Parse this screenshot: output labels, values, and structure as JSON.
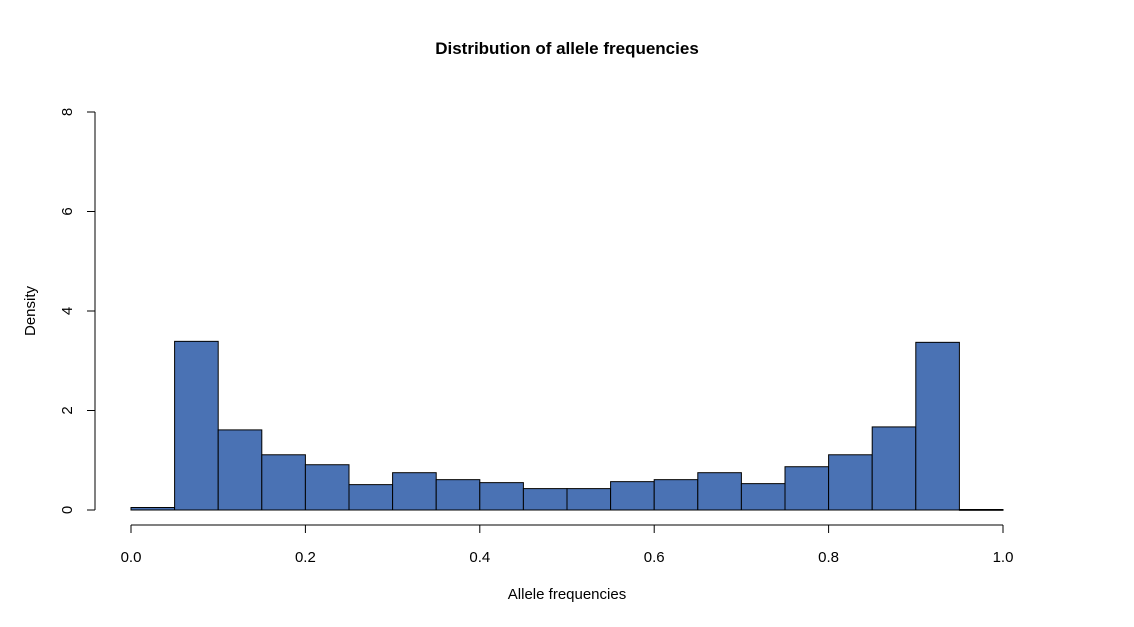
{
  "chart_data": {
    "type": "bar",
    "title": "Distribution of allele frequencies",
    "xlabel": "Allele frequencies",
    "ylabel": "Density",
    "xlim": [
      0,
      1
    ],
    "ylim": [
      0,
      8
    ],
    "x_ticks": [
      "0.0",
      "0.2",
      "0.4",
      "0.6",
      "0.8",
      "1.0"
    ],
    "y_ticks": [
      "0",
      "2",
      "4",
      "6",
      "8"
    ],
    "bar_color": "#4a72b4",
    "bin_edges": [
      0.0,
      0.05,
      0.1,
      0.15,
      0.2,
      0.25,
      0.3,
      0.35,
      0.4,
      0.45,
      0.5,
      0.55,
      0.6,
      0.65,
      0.7,
      0.75,
      0.8,
      0.85,
      0.9,
      0.95,
      1.0
    ],
    "values": [
      0.05,
      3.39,
      1.61,
      1.11,
      0.91,
      0.51,
      0.75,
      0.61,
      0.55,
      0.43,
      0.43,
      0.57,
      0.61,
      0.75,
      0.53,
      0.87,
      1.11,
      1.67,
      3.37,
      0.01
    ],
    "grid": false,
    "legend": "none"
  }
}
